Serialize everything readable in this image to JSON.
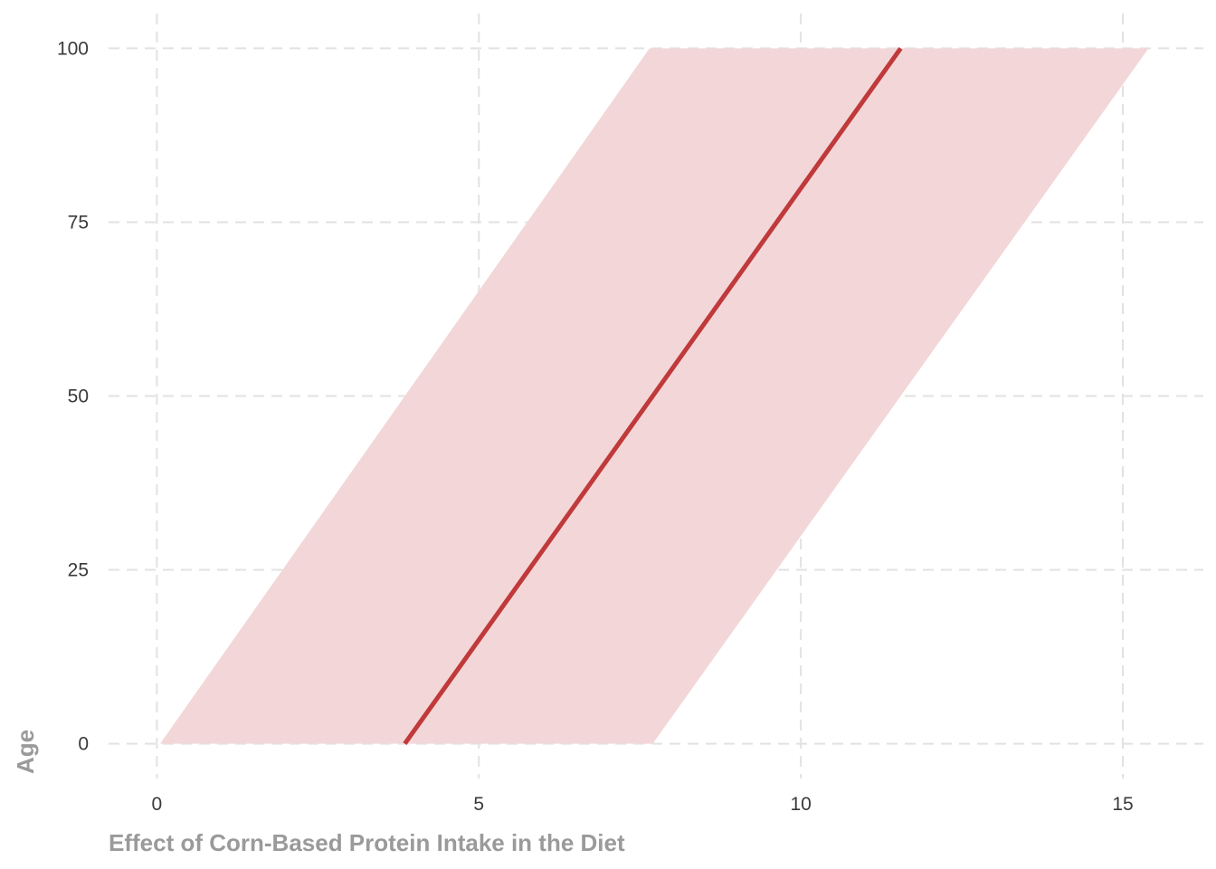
{
  "chart_data": {
    "type": "line",
    "title": "",
    "xlabel": "Effect of Corn-Based Protein Intake in the Diet",
    "ylabel": "Age",
    "xlim": [
      -0.75,
      16.25
    ],
    "ylim": [
      -5,
      105
    ],
    "x_ticks": [
      0,
      5,
      10,
      15
    ],
    "y_ticks": [
      0,
      25,
      50,
      75,
      100
    ],
    "x_tick_labels": [
      "0",
      "5",
      "10",
      "15"
    ],
    "y_tick_labels": [
      "0",
      "25",
      "50",
      "75",
      "100"
    ],
    "grid": true,
    "legend": "none",
    "series": [
      {
        "kind": "line",
        "color": "#c0393b",
        "x": [
          3.85,
          11.55
        ],
        "y": [
          0,
          100
        ]
      },
      {
        "kind": "band",
        "color": "#f3d7d8",
        "y": [
          0,
          100
        ],
        "x_low": [
          0.05,
          7.65
        ],
        "x_high": [
          7.7,
          15.4
        ]
      }
    ]
  }
}
